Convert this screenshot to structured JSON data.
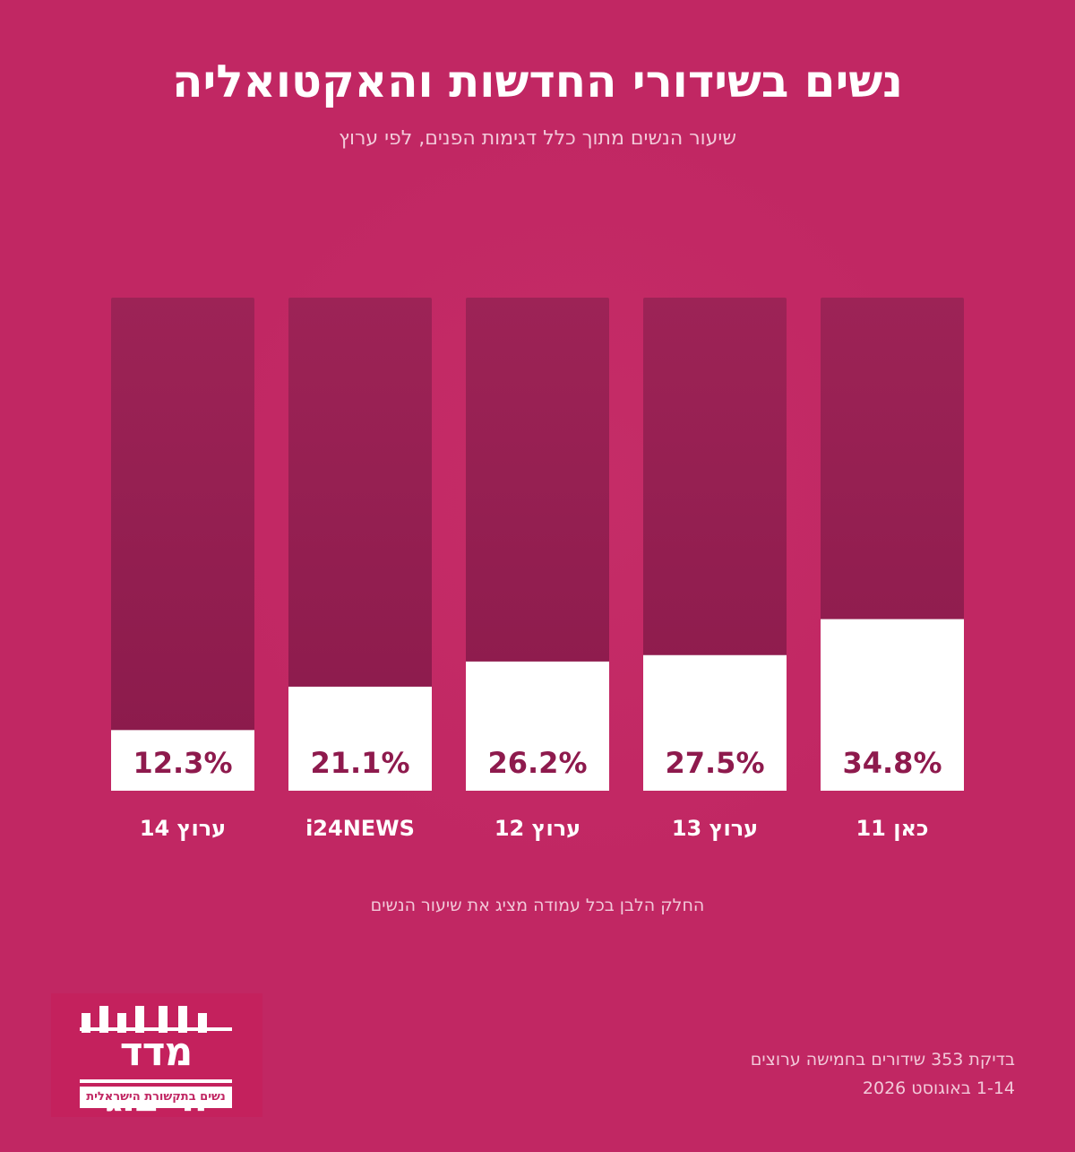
{
  "title": "נשים בשידורי החדשות והאקטואליה",
  "subtitle": "שיעור הנשים מתוך כלל דגימות הפנים, לפי ערוץ",
  "chart_data": {
    "type": "bar",
    "stacked_100": true,
    "categories": [
      "ערוץ 14",
      "i24NEWS",
      "ערוץ 12",
      "ערוץ 13",
      "כאן 11"
    ],
    "values": [
      12.3,
      21.1,
      26.2,
      27.5,
      34.8
    ],
    "value_labels": [
      "12.3%",
      "21.1%",
      "26.2%",
      "27.5%",
      "34.8%"
    ],
    "ylim": [
      0,
      100
    ],
    "colors": {
      "women": "#ffffff",
      "rest": "#911b4e",
      "label": "#8e1a4d"
    }
  },
  "note": "החלק הלבן בכל עמודה מציג את שיעור הנשים",
  "logo": {
    "name": "מדד הייצוג",
    "tagline": "נשים בתקשורת הישראלית"
  },
  "footer": {
    "line1": "בדיקת 353 שידורים בחמישה ערוצים",
    "line2": "1-14 באוגוסט 2026"
  }
}
